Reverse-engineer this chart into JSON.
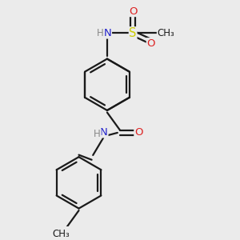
{
  "bg_color": "#ebebeb",
  "bond_color": "#1a1a1a",
  "bond_lw": 1.6,
  "dbo": 0.07,
  "atom_colors": {
    "N": "#2222cc",
    "O": "#dd2222",
    "S": "#cccc00",
    "C": "#1a1a1a",
    "H": "#888888"
  },
  "fs": 9.5,
  "fs_small": 8.5
}
